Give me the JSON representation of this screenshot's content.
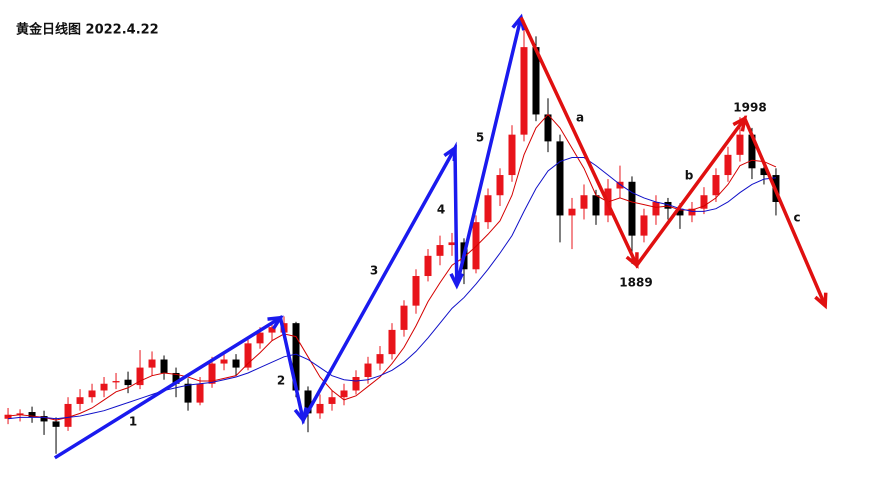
{
  "chart_data": {
    "type": "candlestick",
    "title": "黄金日线图 2022.4.22",
    "up_color": "#e8141b",
    "down_color": "#000000",
    "ylim": [
      1730,
      2085
    ],
    "xlim": [
      -0.67,
      73.42
    ],
    "ohlc": [
      [
        1774,
        1782,
        1770,
        1777
      ],
      [
        1777,
        1781,
        1772,
        1778
      ],
      [
        1779,
        1783,
        1771,
        1775
      ],
      [
        1776,
        1780,
        1762,
        1772
      ],
      [
        1772,
        1775,
        1748,
        1768
      ],
      [
        1768,
        1790,
        1765,
        1785
      ],
      [
        1785,
        1796,
        1780,
        1790
      ],
      [
        1790,
        1800,
        1786,
        1795
      ],
      [
        1795,
        1805,
        1790,
        1800
      ],
      [
        1801,
        1808,
        1796,
        1802
      ],
      [
        1803,
        1809,
        1793,
        1799
      ],
      [
        1799,
        1825,
        1796,
        1812
      ],
      [
        1812,
        1824,
        1806,
        1818
      ],
      [
        1818,
        1821,
        1803,
        1808
      ],
      [
        1808,
        1812,
        1790,
        1800
      ],
      [
        1800,
        1804,
        1780,
        1786
      ],
      [
        1786,
        1805,
        1784,
        1800
      ],
      [
        1800,
        1820,
        1797,
        1815
      ],
      [
        1815,
        1824,
        1810,
        1818
      ],
      [
        1818,
        1822,
        1806,
        1812
      ],
      [
        1812,
        1834,
        1810,
        1830
      ],
      [
        1830,
        1842,
        1826,
        1838
      ],
      [
        1838,
        1846,
        1832,
        1842
      ],
      [
        1838,
        1850,
        1834,
        1845
      ],
      [
        1845,
        1846,
        1790,
        1795
      ],
      [
        1795,
        1798,
        1764,
        1778
      ],
      [
        1778,
        1792,
        1774,
        1785
      ],
      [
        1785,
        1795,
        1780,
        1790
      ],
      [
        1790,
        1800,
        1784,
        1795
      ],
      [
        1795,
        1810,
        1792,
        1805
      ],
      [
        1805,
        1820,
        1800,
        1815
      ],
      [
        1815,
        1828,
        1810,
        1822
      ],
      [
        1822,
        1845,
        1818,
        1840
      ],
      [
        1840,
        1862,
        1835,
        1858
      ],
      [
        1858,
        1885,
        1852,
        1880
      ],
      [
        1880,
        1900,
        1876,
        1895
      ],
      [
        1895,
        1910,
        1888,
        1903
      ],
      [
        1903,
        1912,
        1895,
        1905
      ],
      [
        1905,
        1908,
        1874,
        1885
      ],
      [
        1885,
        1925,
        1882,
        1920
      ],
      [
        1920,
        1945,
        1915,
        1940
      ],
      [
        1940,
        1960,
        1932,
        1955
      ],
      [
        1955,
        1992,
        1950,
        1985
      ],
      [
        1985,
        2070,
        1980,
        2050
      ],
      [
        2050,
        2058,
        1995,
        2000
      ],
      [
        2000,
        2012,
        1972,
        1980
      ],
      [
        1980,
        1985,
        1905,
        1925
      ],
      [
        1925,
        1938,
        1900,
        1930
      ],
      [
        1930,
        1948,
        1922,
        1940
      ],
      [
        1940,
        1944,
        1918,
        1925
      ],
      [
        1925,
        1952,
        1920,
        1945
      ],
      [
        1945,
        1962,
        1938,
        1950
      ],
      [
        1950,
        1954,
        1889,
        1910
      ],
      [
        1910,
        1930,
        1905,
        1925
      ],
      [
        1925,
        1940,
        1918,
        1935
      ],
      [
        1935,
        1938,
        1922,
        1930
      ],
      [
        1930,
        1934,
        1915,
        1925
      ],
      [
        1925,
        1935,
        1920,
        1930
      ],
      [
        1930,
        1946,
        1926,
        1940
      ],
      [
        1940,
        1960,
        1935,
        1955
      ],
      [
        1955,
        1976,
        1950,
        1970
      ],
      [
        1970,
        1998,
        1965,
        1985
      ],
      [
        1985,
        1990,
        1952,
        1960
      ],
      [
        1960,
        1966,
        1948,
        1955
      ],
      [
        1955,
        1960,
        1925,
        1935
      ]
    ],
    "series": [
      {
        "color": "#d40000",
        "values": [
          1776,
          1777,
          1776,
          1775,
          1773,
          1775,
          1778,
          1782,
          1788,
          1794,
          1797,
          1802,
          1806,
          1808,
          1807,
          1805,
          1802,
          1802,
          1804,
          1806,
          1815,
          1823,
          1832,
          1837,
          1835,
          1820,
          1805,
          1795,
          1788,
          1791,
          1798,
          1805,
          1815,
          1827,
          1843,
          1861,
          1875,
          1888,
          1894,
          1902,
          1911,
          1921,
          1940,
          1970,
          1990,
          2000,
          1990,
          1975,
          1960,
          1940,
          1935,
          1938,
          1935,
          1933,
          1931,
          1932,
          1929,
          1929,
          1932,
          1938,
          1948,
          1962,
          1966,
          1965,
          1961
        ]
      },
      {
        "color": "#1010c8",
        "values": [
          1774,
          1775,
          1775,
          1775,
          1774,
          1775,
          1776,
          1778,
          1780,
          1783,
          1786,
          1789,
          1792,
          1795,
          1797,
          1799,
          1800,
          1801,
          1803,
          1805,
          1808,
          1812,
          1816,
          1820,
          1822,
          1818,
          1812,
          1806,
          1803,
          1802,
          1803,
          1806,
          1810,
          1816,
          1824,
          1834,
          1845,
          1856,
          1864,
          1874,
          1885,
          1897,
          1910,
          1928,
          1945,
          1958,
          1965,
          1968,
          1968,
          1962,
          1955,
          1948,
          1942,
          1938,
          1935,
          1933,
          1930,
          1928,
          1928,
          1930,
          1935,
          1942,
          1948,
          1952,
          1953
        ]
      }
    ],
    "waves": [
      {
        "color": "#1a1aee",
        "x": [
          3.9,
          22.7,
          24.6,
          37.25,
          37.4,
          42.75
        ],
        "y": [
          1745,
          1849,
          1773,
          1975,
          1873,
          2072
        ]
      },
      {
        "color": "#e01010",
        "x": [
          42.75,
          52.4,
          61.4,
          68.1
        ],
        "y": [
          2072,
          1888,
          1997,
          1858
        ]
      }
    ],
    "annotations": [
      "1",
      "2",
      "3",
      "4",
      "5",
      "a",
      "b",
      "c",
      "1889",
      "1998"
    ]
  }
}
